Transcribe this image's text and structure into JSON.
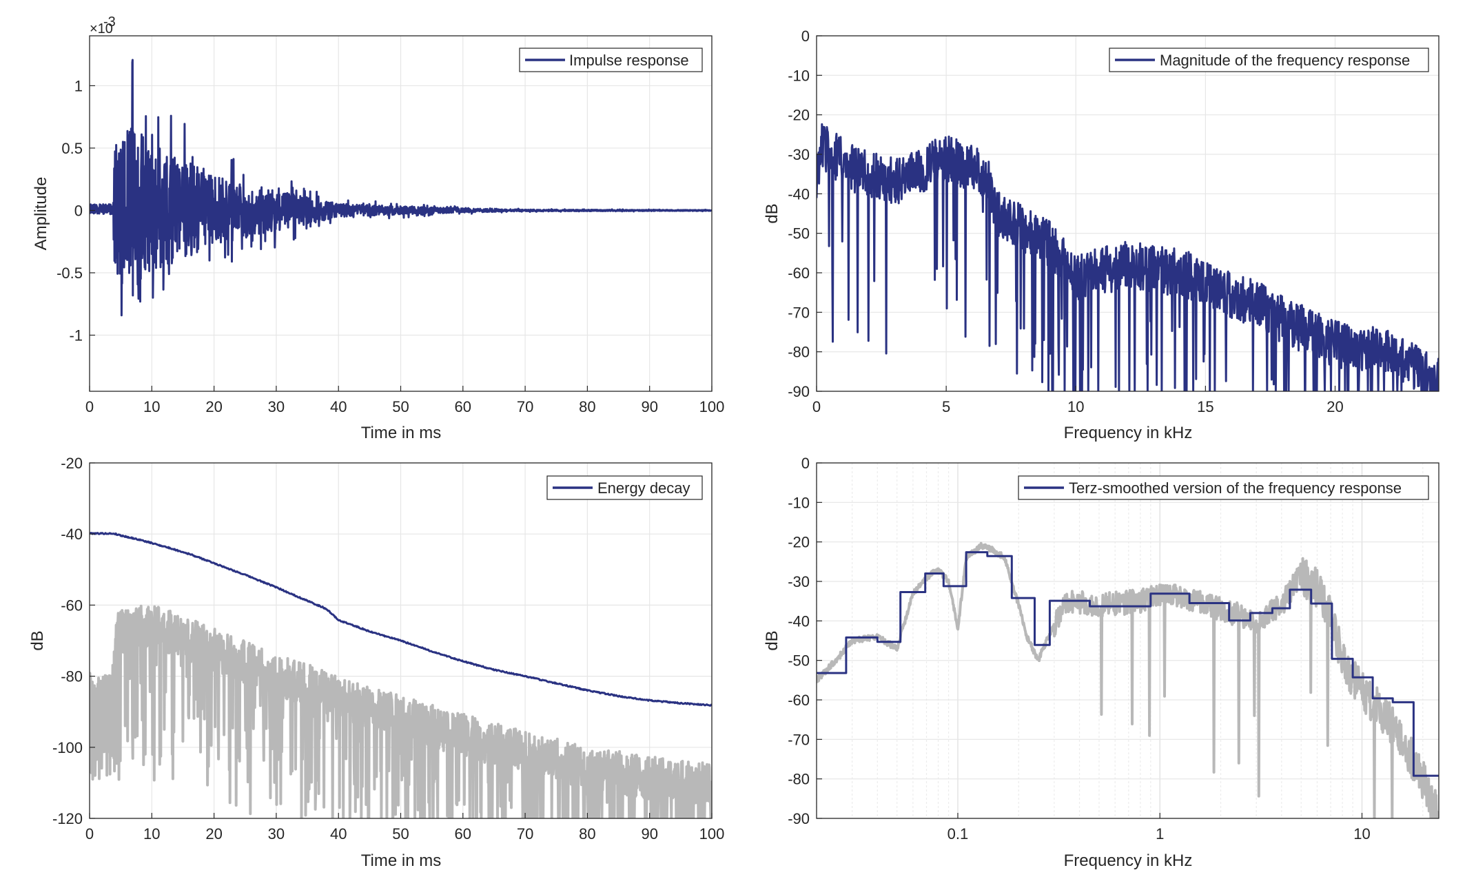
{
  "colors": {
    "series": "#2a3282",
    "gray": "#b8b8b8",
    "grid": "#e6e6e6",
    "axis": "#262626"
  },
  "chart_data": [
    {
      "type": "line",
      "legend_placement": "top-right",
      "grid": true,
      "xlabel": "Time in ms",
      "ylabel": "Amplitude",
      "exponent": "×10",
      "exponent_power": "-3",
      "xlim": [
        0,
        100
      ],
      "ylim": [
        -1.45,
        1.4
      ],
      "xticks": [
        "0",
        "10",
        "20",
        "30",
        "40",
        "50",
        "60",
        "70",
        "80",
        "90",
        "100"
      ],
      "xtick_values": [
        0,
        10,
        20,
        30,
        40,
        50,
        60,
        70,
        80,
        90,
        100
      ],
      "yticks": [
        "-1",
        "-0.5",
        "0",
        "0.5",
        "1"
      ],
      "ytick_values": [
        -1,
        -0.5,
        0,
        0.5,
        1
      ],
      "series": [
        {
          "name": "Impulse response",
          "style": "dark",
          "envelope": [
            [
              0,
              0.05
            ],
            [
              3,
              0.06
            ],
            [
              4,
              0.9
            ],
            [
              7,
              1.33
            ],
            [
              10,
              0.85
            ],
            [
              14,
              0.8
            ],
            [
              20,
              0.5
            ],
            [
              30,
              0.3
            ],
            [
              40,
              0.1
            ],
            [
              50,
              0.06
            ],
            [
              60,
              0.03
            ],
            [
              70,
              0.012
            ],
            [
              100,
              0.006
            ]
          ]
        }
      ]
    },
    {
      "type": "line",
      "legend_placement": "top-right",
      "grid": true,
      "xlabel": "Frequency in kHz",
      "ylabel": "dB",
      "xlim": [
        0,
        24
      ],
      "ylim": [
        -90,
        0
      ],
      "xticks": [
        "0",
        "5",
        "10",
        "15",
        "20"
      ],
      "xtick_values": [
        0,
        5,
        10,
        15,
        20
      ],
      "yticks": [
        "0",
        "-10",
        "-20",
        "-30",
        "-40",
        "-50",
        "-60",
        "-70",
        "-80",
        "-90"
      ],
      "ytick_values": [
        0,
        -10,
        -20,
        -30,
        -40,
        -50,
        -60,
        -70,
        -80,
        -90
      ],
      "series": [
        {
          "name": "Magnitude of the frequency response",
          "style": "dark",
          "envelope": [
            [
              0,
              -38
            ],
            [
              0.2,
              -28
            ],
            [
              1.5,
              -34
            ],
            [
              3,
              -37
            ],
            [
              5,
              -31
            ],
            [
              6.5,
              -35
            ],
            [
              7,
              -45
            ],
            [
              9,
              -53
            ],
            [
              10,
              -61
            ],
            [
              12,
              -58
            ],
            [
              14,
              -60
            ],
            [
              15,
              -62
            ],
            [
              16,
              -66
            ],
            [
              17,
              -68
            ],
            [
              18,
              -72
            ],
            [
              20,
              -78
            ],
            [
              22,
              -80
            ],
            [
              24,
              -87
            ]
          ]
        }
      ]
    },
    {
      "type": "line",
      "legend_placement": "top-right",
      "grid": true,
      "xlabel": "Time in ms",
      "ylabel": "dB",
      "xlim": [
        0,
        100
      ],
      "ylim": [
        -120,
        -20
      ],
      "xticks": [
        "0",
        "10",
        "20",
        "30",
        "40",
        "50",
        "60",
        "70",
        "80",
        "90",
        "100"
      ],
      "xtick_values": [
        0,
        10,
        20,
        30,
        40,
        50,
        60,
        70,
        80,
        90,
        100
      ],
      "yticks": [
        "-20",
        "-40",
        "-60",
        "-80",
        "-100",
        "-120"
      ],
      "ytick_values": [
        -20,
        -40,
        -60,
        -80,
        -100,
        -120
      ],
      "series": [
        {
          "name": "",
          "style": "gray",
          "envelope": [
            [
              0,
              -84
            ],
            [
              3.5,
              -84
            ],
            [
              4.5,
              -70
            ],
            [
              10,
              -68
            ],
            [
              20,
              -75
            ],
            [
              30,
              -82
            ],
            [
              40,
              -88
            ],
            [
              50,
              -94
            ],
            [
              60,
              -99
            ],
            [
              70,
              -104
            ],
            [
              80,
              -108
            ],
            [
              90,
              -111
            ],
            [
              100,
              -113
            ]
          ]
        },
        {
          "name": "Energy decay",
          "style": "dark",
          "points": [
            [
              0,
              -39.8
            ],
            [
              4,
              -39.9
            ],
            [
              5,
              -40.4
            ],
            [
              8,
              -41.6
            ],
            [
              12,
              -43.5
            ],
            [
              16,
              -45.6
            ],
            [
              20,
              -48.2
            ],
            [
              25,
              -51.5
            ],
            [
              30,
              -55
            ],
            [
              35,
              -58.8
            ],
            [
              38,
              -61
            ],
            [
              40,
              -64.2
            ],
            [
              45,
              -67.4
            ],
            [
              50,
              -70
            ],
            [
              55,
              -73
            ],
            [
              60,
              -75.8
            ],
            [
              65,
              -78.2
            ],
            [
              70,
              -80
            ],
            [
              75,
              -82
            ],
            [
              80,
              -84
            ],
            [
              85,
              -85.6
            ],
            [
              90,
              -86.8
            ],
            [
              95,
              -87.6
            ],
            [
              100,
              -88.2
            ]
          ]
        }
      ]
    },
    {
      "type": "line",
      "legend_placement": "top-right",
      "grid": true,
      "log_x": true,
      "xlabel": "Frequency in kHz",
      "ylabel": "dB",
      "xlim": [
        0.02,
        24
      ],
      "ylim": [
        -90,
        0
      ],
      "xticks": [
        "0.1",
        "1",
        "10"
      ],
      "xtick_values": [
        0.1,
        1,
        10
      ],
      "yticks": [
        "0",
        "-10",
        "-20",
        "-30",
        "-40",
        "-50",
        "-60",
        "-70",
        "-80",
        "-90"
      ],
      "ytick_values": [
        0,
        -10,
        -20,
        -30,
        -40,
        -50,
        -60,
        -70,
        -80,
        -90
      ],
      "series": [
        {
          "name": "",
          "style": "gray",
          "points": [
            [
              0.02,
              -55
            ],
            [
              0.025,
              -50
            ],
            [
              0.03,
              -45
            ],
            [
              0.04,
              -44
            ],
            [
              0.05,
              -47
            ],
            [
              0.06,
              -33
            ],
            [
              0.07,
              -29
            ],
            [
              0.08,
              -27
            ],
            [
              0.09,
              -30
            ],
            [
              0.1,
              -42
            ],
            [
              0.11,
              -24
            ],
            [
              0.13,
              -21
            ],
            [
              0.15,
              -22
            ],
            [
              0.17,
              -24
            ],
            [
              0.2,
              -36
            ],
            [
              0.22,
              -44
            ],
            [
              0.25,
              -50
            ],
            [
              0.28,
              -44
            ],
            [
              0.35,
              -35
            ],
            [
              0.5,
              -36
            ],
            [
              0.8,
              -35
            ],
            [
              1,
              -33
            ],
            [
              1.5,
              -35
            ],
            [
              2,
              -37
            ],
            [
              3,
              -40
            ],
            [
              4,
              -36
            ],
            [
              5,
              -28
            ],
            [
              6,
              -32
            ],
            [
              7,
              -38
            ],
            [
              8,
              -50
            ],
            [
              10,
              -58
            ],
            [
              12,
              -62
            ],
            [
              15,
              -68
            ],
            [
              20,
              -80
            ],
            [
              24,
              -90
            ]
          ]
        },
        {
          "name": "Terz-smoothed version of the frequency response",
          "style": "dark",
          "steps": [
            [
              0.02,
              0.028,
              -53.2
            ],
            [
              0.028,
              0.04,
              -44.2
            ],
            [
              0.04,
              0.052,
              -45.3
            ],
            [
              0.052,
              0.069,
              -32.7
            ],
            [
              0.069,
              0.085,
              -28
            ],
            [
              0.085,
              0.11,
              -31.2
            ],
            [
              0.11,
              0.14,
              -22.6
            ],
            [
              0.14,
              0.185,
              -23.6
            ],
            [
              0.185,
              0.24,
              -34.2
            ],
            [
              0.24,
              0.285,
              -46.1
            ],
            [
              0.285,
              0.45,
              -34.9
            ],
            [
              0.45,
              0.9,
              -36.3
            ],
            [
              0.9,
              1.4,
              -33.1
            ],
            [
              1.4,
              2.2,
              -35.5
            ],
            [
              2.2,
              2.8,
              -39.9
            ],
            [
              2.8,
              3.6,
              -38
            ],
            [
              3.6,
              4.4,
              -36.8
            ],
            [
              4.4,
              5.6,
              -32.1
            ],
            [
              5.6,
              7.1,
              -35.6
            ],
            [
              7.1,
              9,
              -49.6
            ],
            [
              9,
              11.3,
              -54.3
            ],
            [
              11.3,
              14.2,
              -59.6
            ],
            [
              14.2,
              18,
              -60.6
            ],
            [
              18,
              24,
              -79.2
            ]
          ]
        }
      ]
    }
  ]
}
